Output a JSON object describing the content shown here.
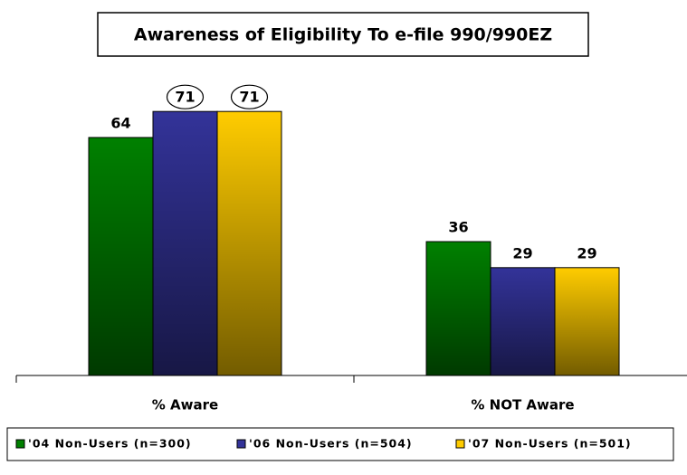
{
  "chart_data": {
    "type": "bar",
    "title": "Awareness of Eligibility To e-file 990/990EZ",
    "categories": [
      "% Aware",
      "% NOT Aware"
    ],
    "series": [
      {
        "name": "'04 Non-Users (n=300)",
        "color": "#008000",
        "values": [
          64,
          36
        ],
        "circled": [
          false,
          false
        ]
      },
      {
        "name": "'06 Non-Users (n=504)",
        "color": "#333399",
        "values": [
          71,
          29
        ],
        "circled": [
          true,
          false
        ]
      },
      {
        "name": "'07 Non-Users (n=501)",
        "color": "#ffcc00",
        "values": [
          71,
          29
        ],
        "circled": [
          true,
          false
        ]
      }
    ],
    "legend": "bottom"
  }
}
